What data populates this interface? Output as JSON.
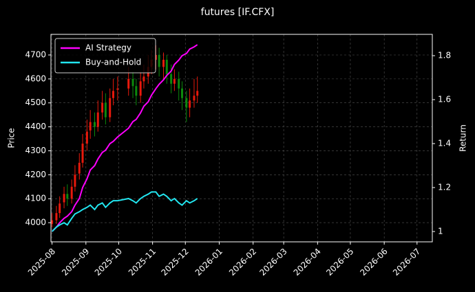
{
  "chart_data": {
    "type": "candlestick",
    "title": "futures [IF.CFX]",
    "ylabel": "Price",
    "y2label": "Return",
    "x": [
      "2025-08-01",
      "2025-08-05",
      "2025-08-08",
      "2025-08-12",
      "2025-08-15",
      "2025-08-19",
      "2025-08-22",
      "2025-08-26",
      "2025-08-29",
      "2025-09-02",
      "2025-09-05",
      "2025-09-09",
      "2025-09-12",
      "2025-09-16",
      "2025-09-19",
      "2025-09-23",
      "2025-09-26",
      "2025-09-30",
      "2025-10-10",
      "2025-10-14",
      "2025-10-17",
      "2025-10-21",
      "2025-10-24",
      "2025-10-28",
      "2025-10-31",
      "2025-11-04",
      "2025-11-07",
      "2025-11-11",
      "2025-11-14",
      "2025-11-18",
      "2025-11-21",
      "2025-11-25",
      "2025-11-28",
      "2025-12-02",
      "2025-12-05",
      "2025-12-09",
      "2025-12-12"
    ],
    "open": [
      3995,
      4010,
      4040,
      4085,
      4120,
      4100,
      4150,
      4205,
      4250,
      4330,
      4385,
      4420,
      4400,
      4460,
      4500,
      4440,
      4520,
      4555,
      4560,
      4600,
      4570,
      4530,
      4590,
      4610,
      4650,
      4680,
      4700,
      4650,
      4680,
      4620,
      4580,
      4600,
      4560,
      4520,
      4480,
      4510,
      4530
    ],
    "high": [
      4040,
      4070,
      4110,
      4150,
      4160,
      4180,
      4240,
      4290,
      4370,
      4430,
      4470,
      4460,
      4510,
      4550,
      4540,
      4560,
      4600,
      4610,
      4650,
      4630,
      4600,
      4630,
      4660,
      4700,
      4720,
      4740,
      4730,
      4710,
      4700,
      4660,
      4640,
      4630,
      4590,
      4550,
      4560,
      4600,
      4610
    ],
    "low": [
      3980,
      3995,
      4020,
      4060,
      4070,
      4080,
      4130,
      4180,
      4230,
      4300,
      4350,
      4360,
      4380,
      4430,
      4410,
      4420,
      4490,
      4510,
      4530,
      4520,
      4490,
      4500,
      4560,
      4580,
      4620,
      4640,
      4610,
      4600,
      4580,
      4540,
      4550,
      4510,
      4470,
      4420,
      4440,
      4480,
      4500
    ],
    "close": [
      4010,
      4040,
      4080,
      4120,
      4100,
      4150,
      4200,
      4250,
      4330,
      4380,
      4420,
      4400,
      4460,
      4500,
      4440,
      4520,
      4550,
      4560,
      4600,
      4570,
      4530,
      4590,
      4610,
      4650,
      4680,
      4700,
      4650,
      4680,
      4620,
      4580,
      4600,
      4560,
      4520,
      4480,
      4510,
      4530,
      4550
    ],
    "up_color": "#e8190c",
    "down_color": "#0c8a0c",
    "series": [
      {
        "name": "AI Strategy",
        "color": "#ff00ff",
        "axis": "y2",
        "values": [
          1.0,
          1.02,
          1.04,
          1.06,
          1.07,
          1.09,
          1.12,
          1.15,
          1.2,
          1.24,
          1.28,
          1.3,
          1.33,
          1.36,
          1.37,
          1.4,
          1.41,
          1.43,
          1.47,
          1.5,
          1.51,
          1.54,
          1.57,
          1.59,
          1.62,
          1.65,
          1.67,
          1.69,
          1.71,
          1.73,
          1.76,
          1.78,
          1.8,
          1.81,
          1.83,
          1.84,
          1.85
        ]
      },
      {
        "name": "Buy-and-Hold",
        "color": "#22e6f0",
        "axis": "y2",
        "values": [
          1.0,
          1.02,
          1.03,
          1.04,
          1.03,
          1.06,
          1.08,
          1.09,
          1.1,
          1.11,
          1.12,
          1.1,
          1.12,
          1.13,
          1.11,
          1.13,
          1.14,
          1.14,
          1.15,
          1.14,
          1.13,
          1.15,
          1.16,
          1.17,
          1.18,
          1.18,
          1.16,
          1.17,
          1.16,
          1.14,
          1.15,
          1.13,
          1.12,
          1.14,
          1.13,
          1.14,
          1.15
        ]
      }
    ],
    "xlim": [
      "2025-07-31",
      "2026-07-15"
    ],
    "xticks": [
      {
        "value": "2025-08-01",
        "label": "2025-08"
      },
      {
        "value": "2025-09-01",
        "label": "2025-09"
      },
      {
        "value": "2025-10-01",
        "label": "2025-10"
      },
      {
        "value": "2025-11-01",
        "label": "2025-11"
      },
      {
        "value": "2025-12-01",
        "label": "2025-12"
      },
      {
        "value": "2026-01-01",
        "label": "2026-01"
      },
      {
        "value": "2026-02-01",
        "label": "2026-02"
      },
      {
        "value": "2026-03-01",
        "label": "2026-03"
      },
      {
        "value": "2026-04-01",
        "label": "2026-04"
      },
      {
        "value": "2026-05-01",
        "label": "2026-05"
      },
      {
        "value": "2026-06-01",
        "label": "2026-06"
      },
      {
        "value": "2026-07-01",
        "label": "2026-07"
      }
    ],
    "ylim": [
      3920,
      4786
    ],
    "yticks": [
      4000,
      4100,
      4200,
      4300,
      4400,
      4500,
      4600,
      4700
    ],
    "y2lim": [
      0.953,
      1.897
    ],
    "y2ticks": [
      1.0,
      1.2,
      1.4,
      1.6,
      1.8
    ],
    "grid": true,
    "legend": "upper left"
  }
}
